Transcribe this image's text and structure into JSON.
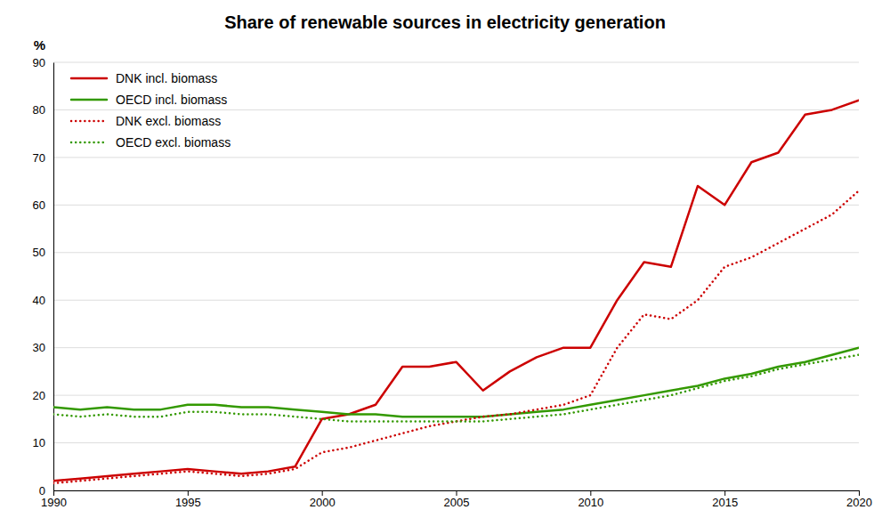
{
  "chart_data": {
    "type": "line",
    "title": "Share of renewable sources in electricity generation",
    "y_label": "%",
    "x": [
      1990,
      1991,
      1992,
      1993,
      1994,
      1995,
      1996,
      1997,
      1998,
      1999,
      2000,
      2001,
      2002,
      2003,
      2004,
      2005,
      2006,
      2007,
      2008,
      2009,
      2010,
      2011,
      2012,
      2013,
      2014,
      2015,
      2016,
      2017,
      2018,
      2019,
      2020
    ],
    "xlim": [
      1990,
      2020
    ],
    "xticks": [
      1990,
      1995,
      2000,
      2005,
      2010,
      2015,
      2020
    ],
    "ylim": [
      0,
      90
    ],
    "yticks": [
      0,
      10,
      20,
      30,
      40,
      50,
      60,
      70,
      80,
      90
    ],
    "grid": true,
    "legend": "upper left",
    "series": [
      {
        "name": "DNK incl. biomass",
        "color": "#cc0000",
        "line_style": "solid",
        "values": [
          2.0,
          2.5,
          3.0,
          3.5,
          4.0,
          4.5,
          4.0,
          3.5,
          4.0,
          5.0,
          15.0,
          16.0,
          18.0,
          26.0,
          26.0,
          27.0,
          21.0,
          25.0,
          28.0,
          30.0,
          30.0,
          40.0,
          48.0,
          47.0,
          64.0,
          60.0,
          69.0,
          71.0,
          79.0,
          80.0,
          82.0
        ]
      },
      {
        "name": "OECD incl. biomass",
        "color": "#339900",
        "line_style": "solid",
        "values": [
          17.5,
          17.0,
          17.5,
          17.0,
          17.0,
          18.0,
          18.0,
          17.5,
          17.5,
          17.0,
          16.5,
          16.0,
          16.0,
          15.5,
          15.5,
          15.5,
          15.5,
          16.0,
          16.5,
          17.0,
          18.0,
          19.0,
          20.0,
          21.0,
          22.0,
          23.5,
          24.5,
          26.0,
          27.0,
          28.5,
          30.0
        ]
      },
      {
        "name": "DNK excl. biomass",
        "color": "#cc0000",
        "line_style": "dotted",
        "values": [
          1.5,
          2.0,
          2.5,
          3.0,
          3.5,
          4.0,
          3.5,
          3.0,
          3.5,
          4.5,
          8.0,
          9.0,
          10.5,
          12.0,
          13.5,
          14.5,
          15.5,
          16.0,
          17.0,
          18.0,
          20.0,
          30.0,
          37.0,
          36.0,
          40.0,
          47.0,
          49.0,
          52.0,
          55.0,
          58.0,
          63.0
        ]
      },
      {
        "name": "OECD excl. biomass",
        "color": "#339900",
        "line_style": "dotted",
        "values": [
          16.0,
          15.5,
          16.0,
          15.5,
          15.5,
          16.5,
          16.5,
          16.0,
          16.0,
          15.5,
          15.0,
          14.5,
          14.5,
          14.5,
          14.5,
          14.5,
          14.5,
          15.0,
          15.5,
          16.0,
          17.0,
          18.0,
          19.0,
          20.0,
          21.5,
          23.0,
          24.0,
          25.5,
          26.5,
          27.5,
          28.5
        ]
      }
    ]
  }
}
